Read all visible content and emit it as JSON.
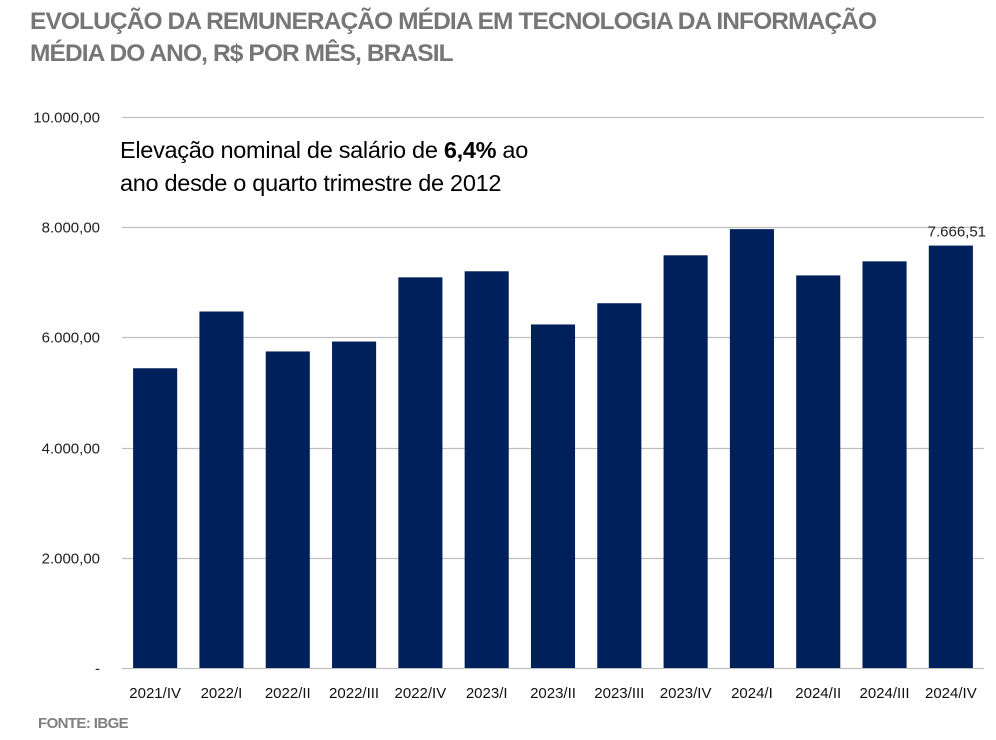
{
  "title": {
    "line1": "EVOLUÇÃO DA REMUNERAÇÃO MÉDIA EM TECNOLOGIA DA INFORMAÇÃO",
    "line2": "MÉDIA DO ANO, R$ POR MÊS, BRASIL"
  },
  "annotation": {
    "part1": "Elevação nominal de salário de ",
    "bold": "6,4%",
    "part2": " ao",
    "line2": "ano desde o quarto trimestre de 2012"
  },
  "source": "FONTE: IBGE",
  "colors": {
    "bar": "#00205B",
    "grid": "#BFBFBF",
    "title": "#767676"
  },
  "chart_data": {
    "type": "bar",
    "title": "EVOLUÇÃO DA REMUNERAÇÃO MÉDIA EM TECNOLOGIA DA INFORMAÇÃO — MÉDIA DO ANO, R$ POR MÊS, BRASIL",
    "xlabel": "",
    "ylabel": "",
    "ylim": [
      0,
      10000
    ],
    "grid": true,
    "y_ticks": [
      0,
      2000,
      4000,
      6000,
      8000,
      10000
    ],
    "y_tick_labels": [
      "-",
      "2.000,00",
      "4.000,00",
      "6.000,00",
      "8.000,00",
      "10.000,00"
    ],
    "categories": [
      "2021/IV",
      "2022/I",
      "2022/II",
      "2022/III",
      "2022/IV",
      "2023/I",
      "2023/II",
      "2023/III",
      "2023/IV",
      "2024/I",
      "2024/II",
      "2024/III",
      "2024/IV"
    ],
    "values": [
      5440,
      6470,
      5745,
      5925,
      7090,
      7200,
      6235,
      6620,
      7490,
      7965,
      7125,
      7380,
      7666.51
    ],
    "data_labels": [
      {
        "category": "2024/IV",
        "text": "7.666,51"
      }
    ]
  }
}
